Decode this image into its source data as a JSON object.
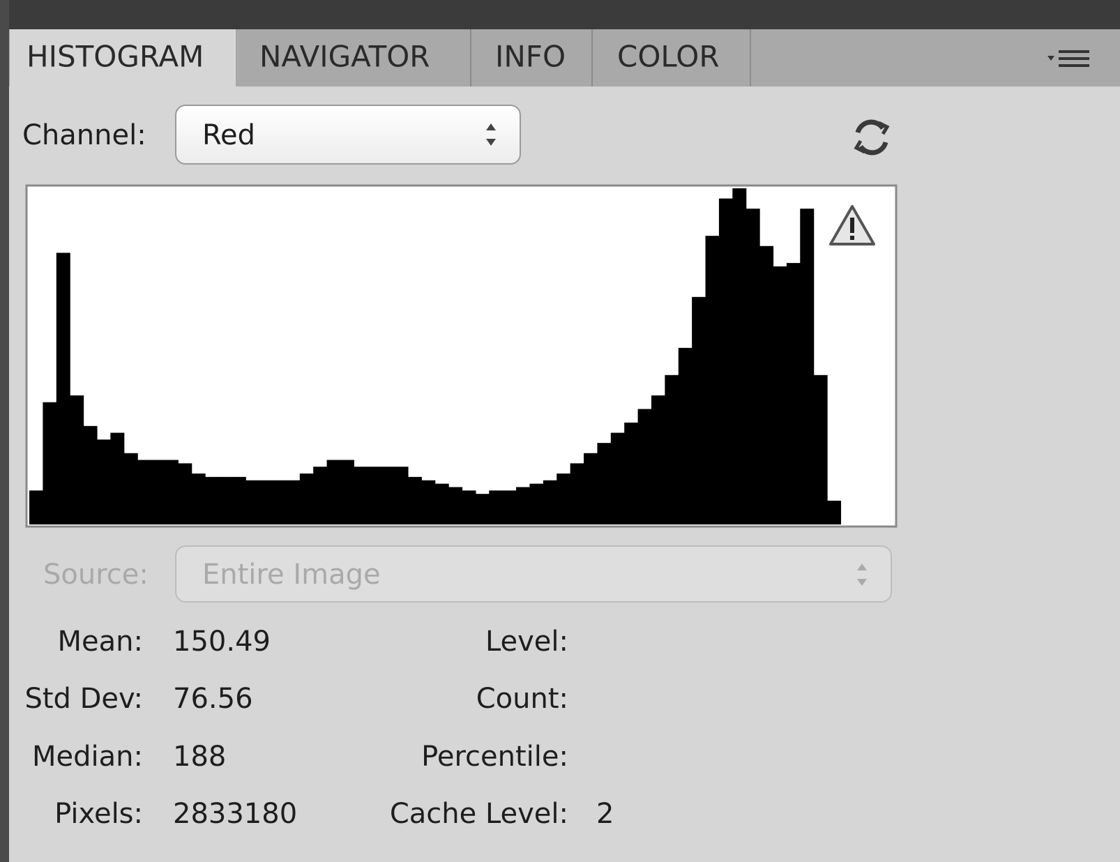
{
  "tabs": [
    "HISTOGRAM",
    "NAVIGATOR",
    "INFO",
    "COLOR"
  ],
  "channel": {
    "label": "Channel:",
    "value": "Red"
  },
  "histogram": {
    "values": [
      10,
      36,
      80,
      38,
      29,
      25,
      27,
      21,
      19,
      19,
      19,
      18,
      15,
      14,
      14,
      14,
      13,
      13,
      13,
      13,
      15,
      17,
      19,
      19,
      17,
      17,
      17,
      17,
      14,
      13,
      12,
      11,
      10,
      9,
      10,
      10,
      11,
      12,
      13,
      15,
      18,
      21,
      24,
      27,
      30,
      34,
      38,
      44,
      52,
      67,
      85,
      96,
      99,
      93,
      82,
      76,
      77,
      93,
      44,
      7,
      0,
      0,
      0,
      0
    ],
    "color": "#000000"
  },
  "source": {
    "label": "Source:",
    "value": "Entire Image"
  },
  "stats_left": [
    {
      "label": "Mean:",
      "value": 150.49
    },
    {
      "label": "Std Dev:",
      "value": 76.56
    },
    {
      "label": "Median:",
      "value": 188
    },
    {
      "label": "Pixels:",
      "value": 2833180
    }
  ],
  "stats_right": [
    {
      "label": "Level:"
    },
    {
      "label": "Count:"
    },
    {
      "label": "Percentile:"
    },
    {
      "label": "Cache Level:",
      "value": 2
    }
  ]
}
